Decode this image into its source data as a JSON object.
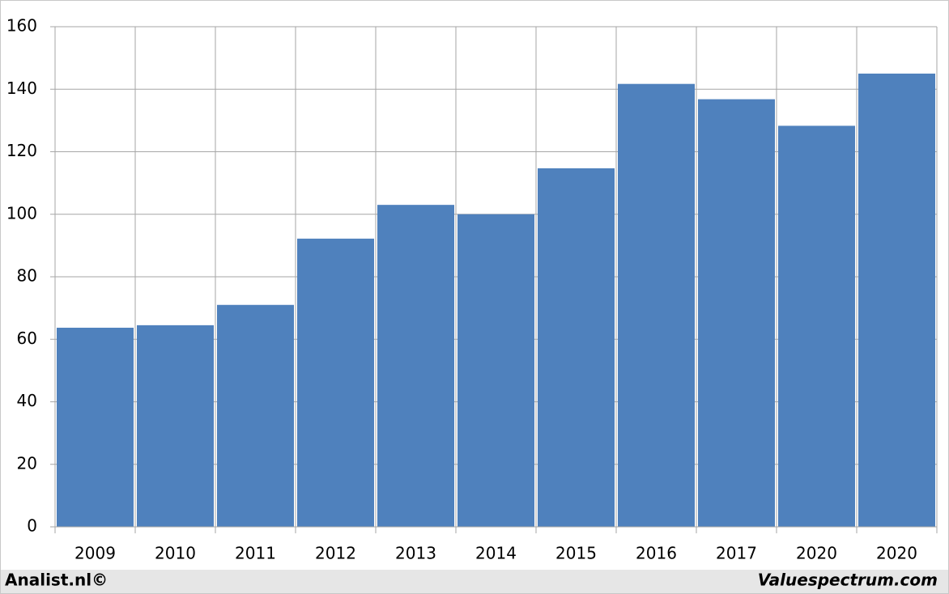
{
  "chart_data": {
    "type": "bar",
    "categories": [
      "2009",
      "2010",
      "2011",
      "2012",
      "2013",
      "2014",
      "2015",
      "2016",
      "2017",
      "2020",
      "2020"
    ],
    "values": [
      63.7,
      64.5,
      71,
      92.2,
      103,
      100,
      114.7,
      141.7,
      136.8,
      128.3,
      145
    ],
    "color": "#4f81bd",
    "ylim": [
      0,
      160
    ],
    "yticks": [
      0,
      20,
      40,
      60,
      80,
      100,
      120,
      140,
      160
    ],
    "grid": true,
    "source_left": "Analist.nl©",
    "source_right": "Valuespectrum.com"
  }
}
